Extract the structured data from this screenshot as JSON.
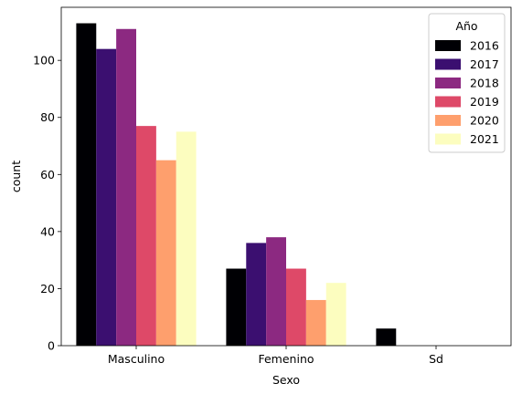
{
  "chart_data": {
    "type": "bar",
    "title": "",
    "xlabel": "Sexo",
    "ylabel": "count",
    "categories": [
      "Masculino",
      "Femenino",
      "Sd"
    ],
    "ylim": [
      0,
      118.6
    ],
    "yticks": [
      0,
      20,
      40,
      60,
      80,
      100
    ],
    "grid": false,
    "legend": {
      "title": "Año",
      "placement": "top-right"
    },
    "series": [
      {
        "name": "2016",
        "color": "#000004",
        "values": [
          113,
          27,
          6
        ]
      },
      {
        "name": "2017",
        "color": "#3b0f70",
        "values": [
          104,
          36,
          0
        ]
      },
      {
        "name": "2018",
        "color": "#8c2981",
        "values": [
          111,
          38,
          0
        ]
      },
      {
        "name": "2019",
        "color": "#de4968",
        "values": [
          77,
          27,
          0
        ]
      },
      {
        "name": "2020",
        "color": "#fe9f6d",
        "values": [
          65,
          16,
          0
        ]
      },
      {
        "name": "2021",
        "color": "#fcfdbf",
        "values": [
          75,
          22,
          0
        ]
      }
    ]
  }
}
